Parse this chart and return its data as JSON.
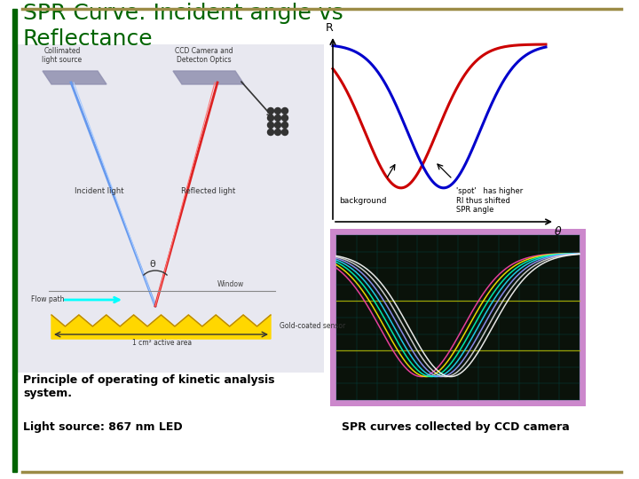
{
  "bg_color": "#ffffff",
  "border_top_color": "#9B8B46",
  "border_bottom_color": "#9B8B46",
  "title_line1": "SPR Curve: Incident angle vs",
  "title_line2": "Reflectance",
  "title_color": "#006400",
  "title_fontsize": 18,
  "left_bar_color": "#006400",
  "caption1": "Principle of operating of kinetic analysis\nsystem.",
  "caption2": "Light source: 867 nm LED",
  "caption_right": "SPR curves collected by CCD camera",
  "caption_fontsize": 9,
  "spr_ylabel": "R",
  "spr_xlabel": "θ",
  "annotation_left": "background",
  "annotation_right": "'spot'   has higher\nRI thus shifted\nSPR angle",
  "ccd_border_color": "#cc88cc",
  "ccd_inner_color": "#0a120a",
  "grid_color": "#005555",
  "yellow_line_color": "#cccc00"
}
